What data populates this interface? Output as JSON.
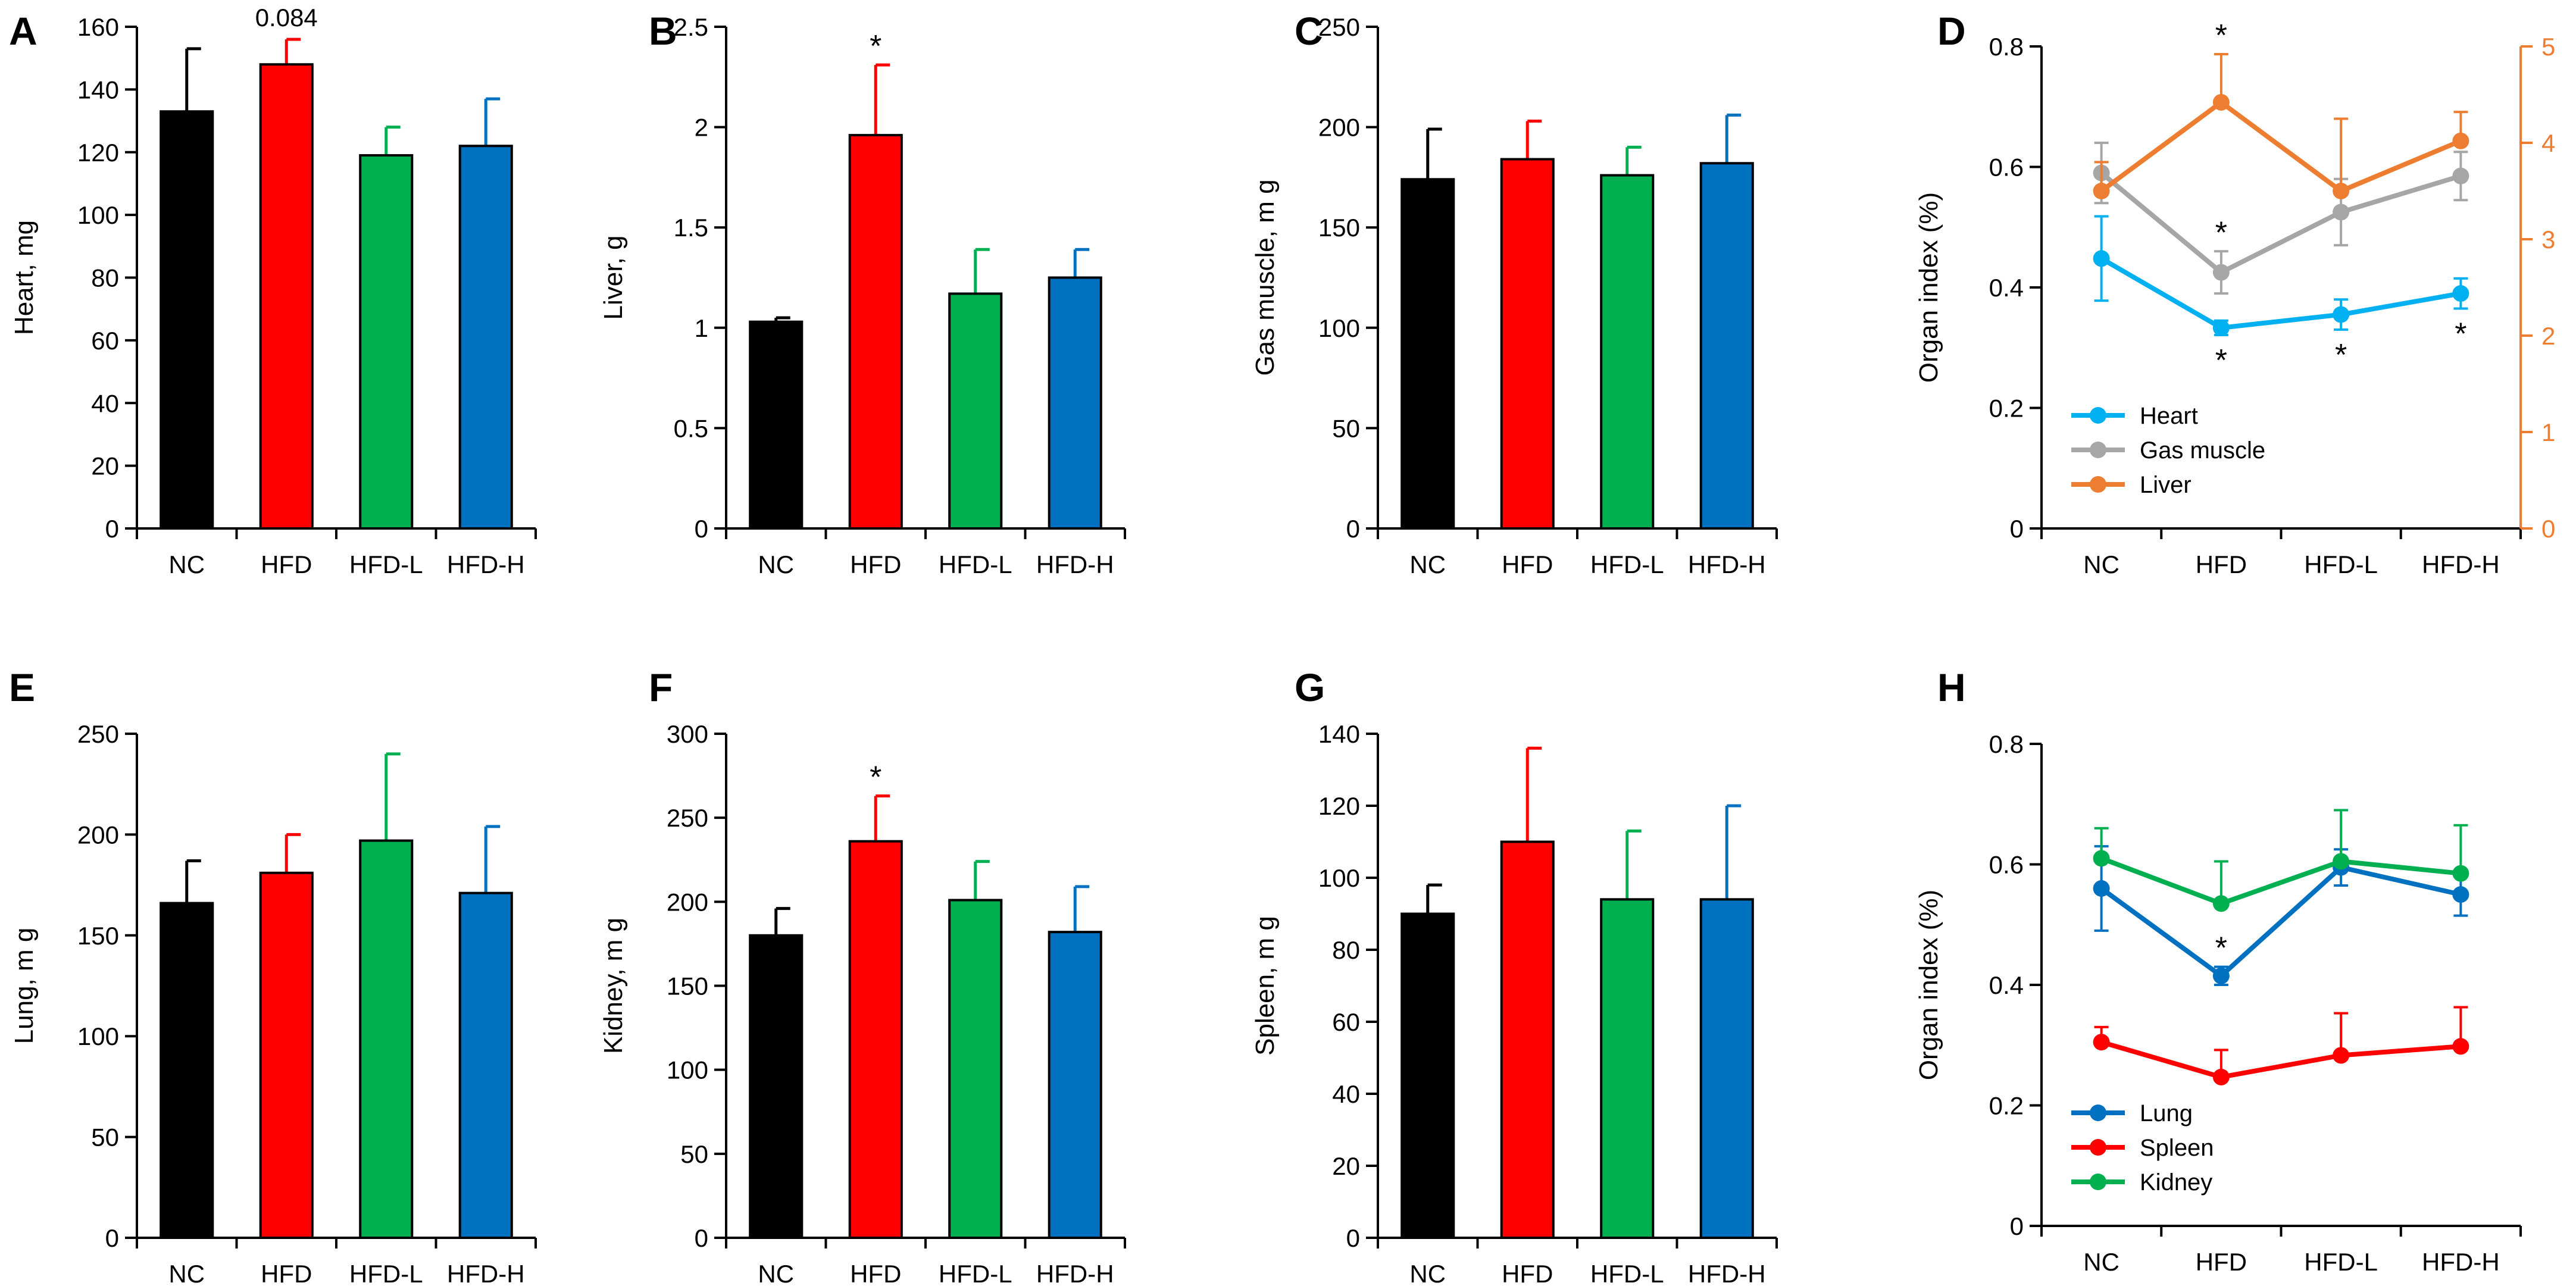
{
  "colors": {
    "NC": "#000000",
    "HFD": "#ff0000",
    "HFD-L": "#00b050",
    "HFD-H": "#0070c0",
    "heart": "#00b0f0",
    "gas_muscle": "#a6a6a6",
    "liver": "#ed7d31",
    "lung": "#0070c0",
    "spleen": "#ff0000",
    "kidney": "#00b050",
    "axis": "#000000"
  },
  "chart_data": [
    {
      "id": "A",
      "letter": "A",
      "type": "bar",
      "categories": [
        "NC",
        "HFD",
        "HFD-L",
        "HFD-H"
      ],
      "values": [
        133,
        148,
        119,
        122
      ],
      "errors": [
        20,
        8,
        9,
        15
      ],
      "ylabel": "Heart, mg",
      "ylim": [
        0,
        160
      ],
      "yticks": [
        0,
        20,
        40,
        60,
        80,
        100,
        120,
        140,
        160
      ],
      "yticklabels": [
        "0",
        "20",
        "40",
        "60",
        "80",
        "100",
        "120",
        "140",
        "160"
      ],
      "annotations": [
        {
          "category": "HFD",
          "text": "0.084"
        }
      ]
    },
    {
      "id": "B",
      "letter": "B",
      "type": "bar",
      "categories": [
        "NC",
        "HFD",
        "HFD-L",
        "HFD-H"
      ],
      "values": [
        1.03,
        1.96,
        1.17,
        1.25
      ],
      "errors": [
        0.02,
        0.35,
        0.22,
        0.14
      ],
      "ylabel": "Liver, g",
      "ylim": [
        0,
        2.5
      ],
      "yticks": [
        0,
        0.5,
        1,
        1.5,
        2,
        2.5
      ],
      "yticklabels": [
        "0",
        "0.5",
        "1",
        "1.5",
        "2",
        "2.5"
      ],
      "annotations": [
        {
          "category": "HFD",
          "text": "*"
        }
      ]
    },
    {
      "id": "C",
      "letter": "C",
      "type": "bar",
      "categories": [
        "NC",
        "HFD",
        "HFD-L",
        "HFD-H"
      ],
      "values": [
        174,
        184,
        176,
        182
      ],
      "errors": [
        25,
        19,
        14,
        24
      ],
      "ylabel": "Gas muscle, m g",
      "ylim": [
        0,
        250
      ],
      "yticks": [
        0,
        50,
        100,
        150,
        200,
        250
      ],
      "yticklabels": [
        "0",
        "50",
        "100",
        "150",
        "200",
        "250"
      ],
      "annotations": []
    },
    {
      "id": "D",
      "letter": "D",
      "type": "line",
      "categories": [
        "NC",
        "HFD",
        "HFD-L",
        "HFD-H"
      ],
      "ylabel": "Organ index (%)",
      "ylim": [
        0,
        0.8
      ],
      "yticks": [
        0,
        0.2,
        0.4,
        0.6,
        0.8
      ],
      "yticklabels": [
        "0",
        "0.2",
        "0.4",
        "0.6",
        "0.8"
      ],
      "y2lim": [
        0,
        5
      ],
      "y2ticks": [
        0,
        1,
        2,
        3,
        4,
        5
      ],
      "y2ticklabels": [
        "0",
        "1",
        "2",
        "3",
        "4",
        "5"
      ],
      "series": [
        {
          "name": "Heart",
          "color_key": "heart",
          "axis": "left",
          "values": [
            0.448,
            0.333,
            0.355,
            0.39
          ],
          "errors": [
            0.07,
            0.012,
            0.025,
            0.025
          ],
          "err_dir": "both",
          "stars": [
            null,
            "below",
            "below",
            "below"
          ]
        },
        {
          "name": "Gas muscle",
          "color_key": "gas_muscle",
          "axis": "left",
          "values": [
            0.59,
            0.425,
            0.525,
            0.585
          ],
          "errors": [
            0.05,
            0.035,
            0.055,
            0.04
          ],
          "err_dir": "both",
          "stars": [
            null,
            "above",
            null,
            null
          ]
        },
        {
          "name": "Liver",
          "color_key": "liver",
          "axis": "right",
          "values": [
            3.5,
            4.42,
            3.5,
            4.02
          ],
          "errors": [
            0.3,
            0.5,
            0.75,
            0.3
          ],
          "err_dir": "up",
          "stars": [
            null,
            "above",
            null,
            null
          ]
        }
      ],
      "legend": "bottom-left"
    },
    {
      "id": "E",
      "letter": "E",
      "type": "bar",
      "categories": [
        "NC",
        "HFD",
        "HFD-L",
        "HFD-H"
      ],
      "values": [
        166,
        181,
        197,
        171
      ],
      "errors": [
        21,
        19,
        43,
        33
      ],
      "ylabel": "Lung, m g",
      "ylim": [
        0,
        250
      ],
      "yticks": [
        0,
        50,
        100,
        150,
        200,
        250
      ],
      "yticklabels": [
        "0",
        "50",
        "100",
        "150",
        "200",
        "250"
      ],
      "annotations": []
    },
    {
      "id": "F",
      "letter": "F",
      "type": "bar",
      "categories": [
        "NC",
        "HFD",
        "HFD-L",
        "HFD-H"
      ],
      "values": [
        180,
        236,
        201,
        182
      ],
      "errors": [
        16,
        27,
        23,
        27
      ],
      "ylabel": "Kidney, m g",
      "ylim": [
        0,
        300
      ],
      "yticks": [
        0,
        50,
        100,
        150,
        200,
        250,
        300
      ],
      "yticklabels": [
        "0",
        "50",
        "100",
        "150",
        "200",
        "250",
        "300"
      ],
      "annotations": [
        {
          "category": "HFD",
          "text": "*"
        }
      ]
    },
    {
      "id": "G",
      "letter": "G",
      "type": "bar",
      "categories": [
        "NC",
        "HFD",
        "HFD-L",
        "HFD-H"
      ],
      "values": [
        90,
        110,
        94,
        94
      ],
      "errors": [
        8,
        26,
        19,
        26
      ],
      "ylabel": "Spleen, m g",
      "ylim": [
        0,
        140
      ],
      "yticks": [
        0,
        20,
        40,
        60,
        80,
        100,
        120,
        140
      ],
      "yticklabels": [
        "0",
        "20",
        "40",
        "60",
        "80",
        "100",
        "120",
        "140"
      ],
      "annotations": []
    },
    {
      "id": "H",
      "letter": "H",
      "type": "line",
      "categories": [
        "NC",
        "HFD",
        "HFD-L",
        "HFD-H"
      ],
      "ylabel": "Organ index (%)",
      "ylim": [
        0,
        0.8
      ],
      "yticks": [
        0,
        0.2,
        0.4,
        0.6,
        0.8
      ],
      "yticklabels": [
        "0",
        "0.2",
        "0.4",
        "0.6",
        "0.8"
      ],
      "series": [
        {
          "name": "Lung",
          "color_key": "lung",
          "axis": "left",
          "values": [
            0.56,
            0.415,
            0.595,
            0.55
          ],
          "errors": [
            0.07,
            0.015,
            0.03,
            0.035
          ],
          "err_dir": "both",
          "stars": [
            null,
            "above",
            null,
            null
          ]
        },
        {
          "name": "Spleen",
          "color_key": "spleen",
          "axis": "left",
          "values": [
            0.305,
            0.247,
            0.283,
            0.298
          ],
          "errors": [
            0.025,
            0.045,
            0.07,
            0.065
          ],
          "err_dir": "up",
          "stars": [
            null,
            null,
            null,
            null
          ]
        },
        {
          "name": "Kidney",
          "color_key": "kidney",
          "axis": "left",
          "values": [
            0.61,
            0.535,
            0.605,
            0.585
          ],
          "errors": [
            0.05,
            0.07,
            0.085,
            0.08
          ],
          "err_dir": "up",
          "stars": [
            null,
            null,
            null,
            null
          ]
        }
      ],
      "legend": "bottom-left"
    }
  ]
}
